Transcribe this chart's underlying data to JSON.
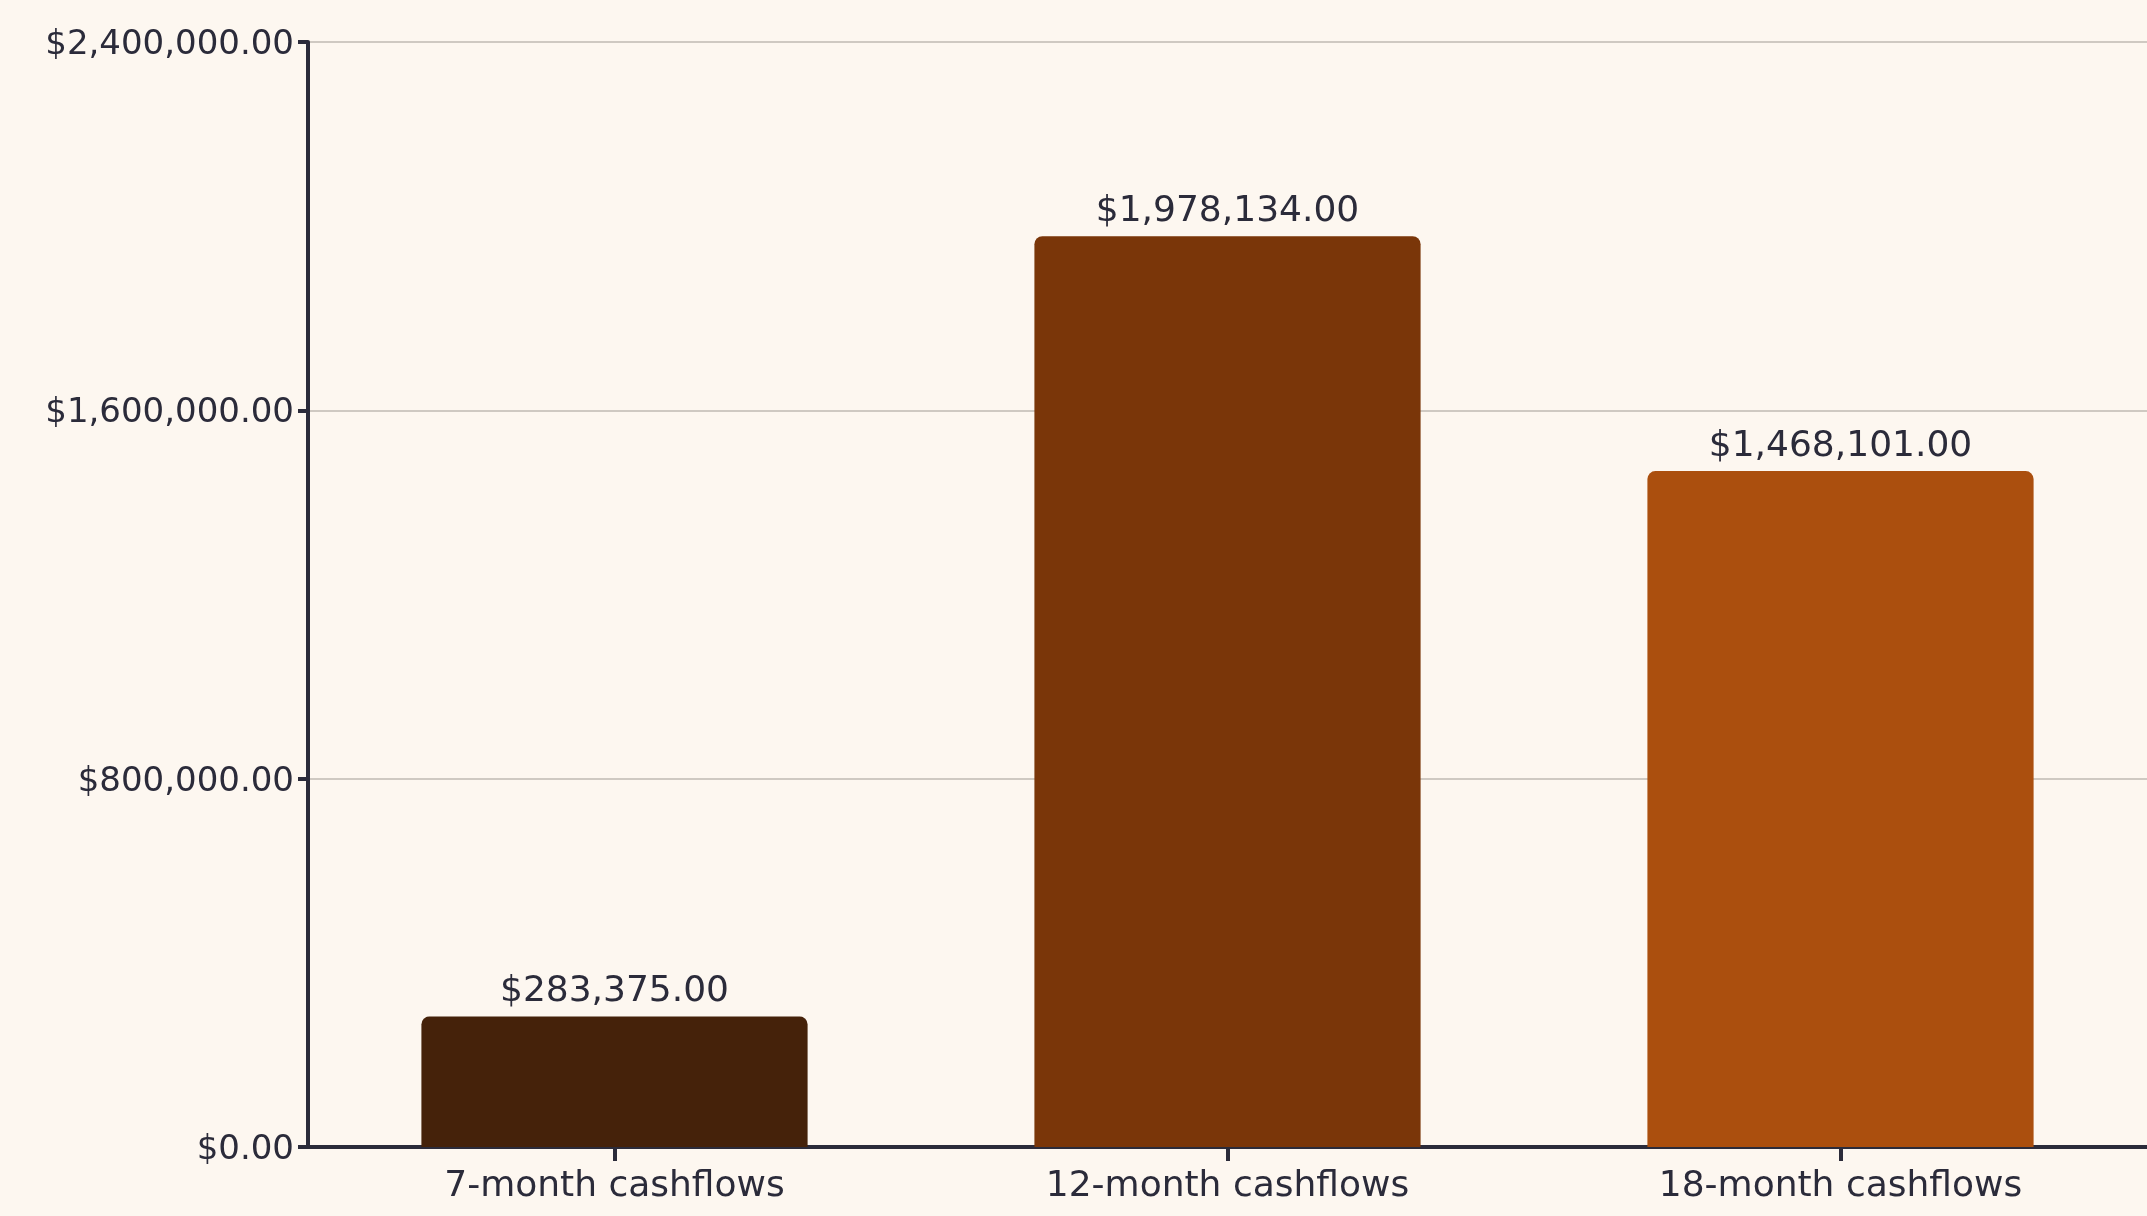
{
  "chart_data": {
    "type": "bar",
    "categories": [
      "7-month cashflows",
      "12-month cashflows",
      "18-month cashflows"
    ],
    "values": [
      283375,
      1978134,
      1468101
    ],
    "colors": [
      "#45220a",
      "#7a3609",
      "#ab4f0e"
    ],
    "value_labels": [
      "$283,375.00",
      "$1,978,134.00",
      "$1,468,101.00"
    ],
    "ylim": [
      0,
      2400000
    ],
    "yticks": [
      {
        "value": 0,
        "label": "$0.00"
      },
      {
        "value": 800000,
        "label": "$800,000.00"
      },
      {
        "value": 1600000,
        "label": "$1,600,000.00"
      },
      {
        "value": 2400000,
        "label": "$2,400,000.00"
      }
    ],
    "grid": "y"
  }
}
